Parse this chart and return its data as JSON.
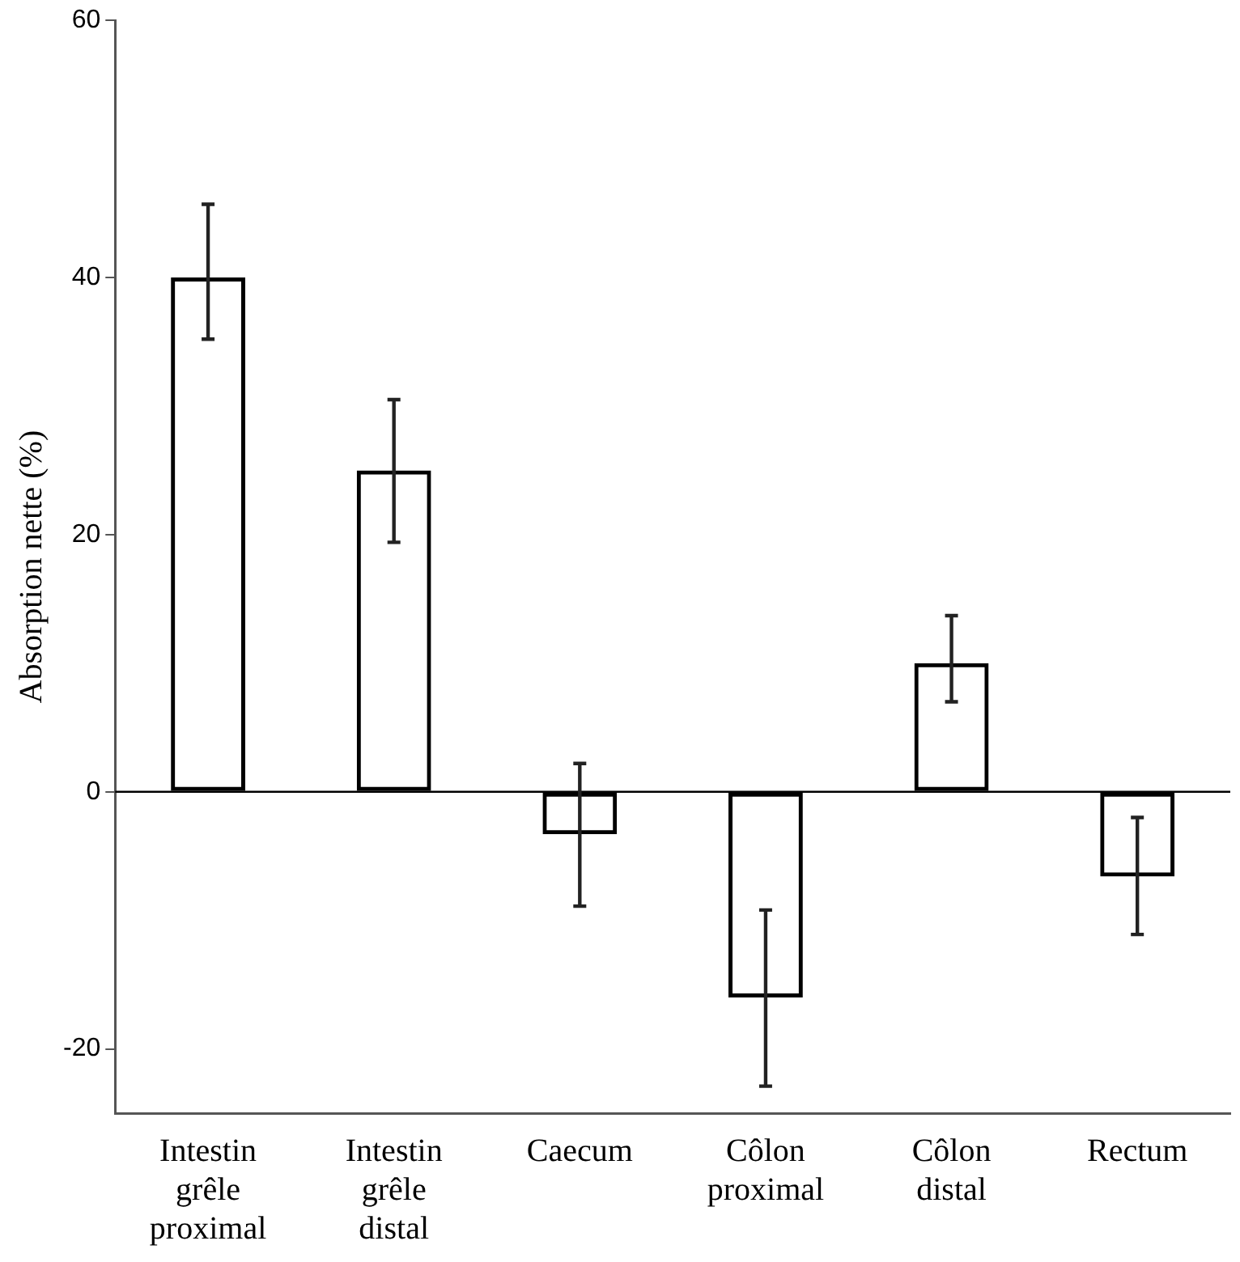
{
  "chart_data": {
    "type": "bar",
    "ylabel": "Absorption nette (%)",
    "categories": [
      "Intestin grêle proximal",
      "Intestin grêle distal",
      "Caecum",
      "Côlon proximal",
      "Côlon distal",
      "Rectum"
    ],
    "values": [
      40,
      25,
      -3.3,
      -16,
      10,
      -6.6
    ],
    "errors": [
      [
        35.2,
        45.7
      ],
      [
        19.4,
        30.5
      ],
      [
        -8.9,
        2.2
      ],
      [
        -22.9,
        -9.2
      ],
      [
        7,
        13.7
      ],
      [
        -11.1,
        -2
      ]
    ],
    "color": "#000000",
    "ylim": [
      -25,
      60
    ],
    "yticks": [
      -20,
      0,
      20,
      40,
      60
    ],
    "ref_lines": [
      {
        "axis": "y",
        "value": 0,
        "color": "#000000"
      }
    ],
    "grid": false,
    "legend": false
  }
}
